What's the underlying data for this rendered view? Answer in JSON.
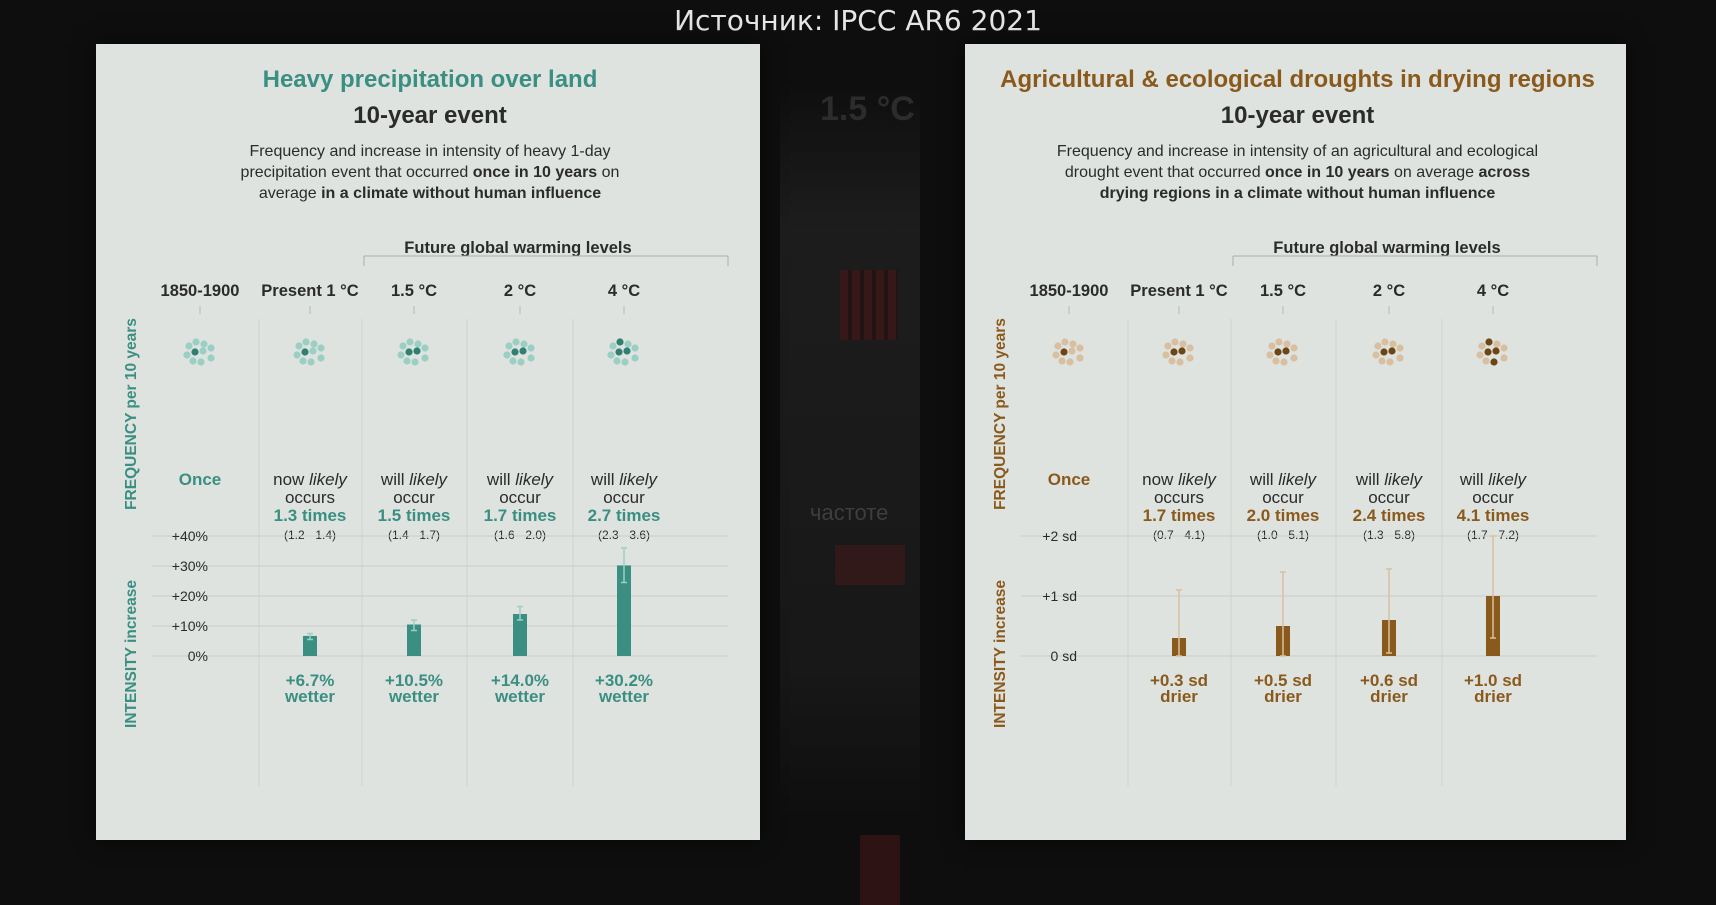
{
  "source": "Источник: IPCC AR6 2021",
  "background": {
    "title": "1.5 °C",
    "text": "частоте"
  },
  "colors": {
    "teal": "#3a8f82",
    "teal_dark": "#2f7f72",
    "teal_light": "#9ccfc4",
    "brown": "#8a5a1c",
    "brown_dark": "#6e4514",
    "brown_light": "#d8bfa0",
    "panel": "#dfe3e0",
    "text": "#2b2b2b"
  },
  "chart_data": [
    {
      "type": "bar",
      "title": "Heavy precipitation over land",
      "subtitle": "10-year event",
      "description": [
        [
          {
            "t": "Frequency and increase in intensity of heavy 1-day",
            "b": false
          }
        ],
        [
          {
            "t": "precipitation event that occurred ",
            "b": false
          },
          {
            "t": "once in 10 years",
            "b": true
          },
          {
            "t": " on",
            "b": false
          }
        ],
        [
          {
            "t": "average ",
            "b": false
          },
          {
            "t": "in a climate without human influence",
            "b": true
          }
        ]
      ],
      "future_label": "Future global warming levels",
      "categories": [
        "1850-1900",
        "Present 1 °C",
        "1.5 °C",
        "2 °C",
        "4 °C"
      ],
      "frequency_label": "FREQUENCY per 10 years",
      "intensity_label": "INTENSITY increase",
      "frequency_text": [
        {
          "l1": "Once",
          "l2": "",
          "value": "",
          "range": ""
        },
        {
          "l1": "now ",
          "em": "likely",
          "l2": "occurs",
          "value": "1.3 times",
          "range": "(1.2 - 1.4)"
        },
        {
          "l1": "will ",
          "em": "likely",
          "l2": "occur",
          "value": "1.5 times",
          "range": "(1.4 - 1.7)"
        },
        {
          "l1": "will ",
          "em": "likely",
          "l2": "occur",
          "value": "1.7 times",
          "range": "(1.6 - 2.0)"
        },
        {
          "l1": "will ",
          "em": "likely",
          "l2": "occur",
          "value": "2.7 times",
          "range": "(2.3 - 3.6)"
        }
      ],
      "frequency_values": [
        1,
        1.3,
        1.5,
        1.7,
        2.7
      ],
      "y_ticks": [
        "+40%",
        "+30%",
        "+20%",
        "+10%",
        "0%"
      ],
      "y_tick_values": [
        40,
        30,
        20,
        10,
        0
      ],
      "ylim": [
        0,
        40
      ],
      "values": [
        null,
        6.7,
        10.5,
        14.0,
        30.2
      ],
      "error_low": [
        null,
        5.5,
        8.5,
        12.0,
        24.5
      ],
      "error_high": [
        null,
        7.5,
        12.0,
        16.5,
        36.0
      ],
      "bar_labels": [
        {
          "v": "",
          "w": ""
        },
        {
          "v": "+6.7%",
          "w": "wetter"
        },
        {
          "v": "+10.5%",
          "w": "wetter"
        },
        {
          "v": "+14.0%",
          "w": "wetter"
        },
        {
          "v": "+30.2%",
          "w": "wetter"
        }
      ],
      "color": "teal"
    },
    {
      "type": "bar",
      "title": "Agricultural & ecological droughts in drying regions",
      "subtitle": "10-year event",
      "description": [
        [
          {
            "t": "Frequency and increase in intensity of an agricultural and ecological",
            "b": false
          }
        ],
        [
          {
            "t": "drought event that occurred ",
            "b": false
          },
          {
            "t": "once in 10 years",
            "b": true
          },
          {
            "t": " on average ",
            "b": false
          },
          {
            "t": "across",
            "b": true
          }
        ],
        [
          {
            "t": "drying regions in a climate without human influence",
            "b": true
          }
        ]
      ],
      "future_label": "Future global warming levels",
      "categories": [
        "1850-1900",
        "Present 1 °C",
        "1.5 °C",
        "2 °C",
        "4 °C"
      ],
      "frequency_label": "FREQUENCY per 10 years",
      "intensity_label": "INTENSITY increase",
      "frequency_text": [
        {
          "l1": "Once",
          "l2": "",
          "value": "",
          "range": ""
        },
        {
          "l1": "now ",
          "em": "likely",
          "l2": "occurs",
          "value": "1.7 times",
          "range": "(0.7 - 4.1)"
        },
        {
          "l1": "will ",
          "em": "likely",
          "l2": "occur",
          "value": "2.0 times",
          "range": "(1.0 - 5.1)"
        },
        {
          "l1": "will ",
          "em": "likely",
          "l2": "occur",
          "value": "2.4 times",
          "range": "(1.3 - 5.8)"
        },
        {
          "l1": "will ",
          "em": "likely",
          "l2": "occur",
          "value": "4.1 times",
          "range": "(1.7 - 7.2)"
        }
      ],
      "frequency_values": [
        1,
        1.7,
        2.0,
        2.4,
        4.1
      ],
      "y_ticks": [
        "+2 sd",
        "+1 sd",
        "0 sd"
      ],
      "y_tick_values": [
        2,
        1,
        0
      ],
      "ylim": [
        0,
        2
      ],
      "values": [
        null,
        0.3,
        0.5,
        0.6,
        1.0
      ],
      "error_low": [
        null,
        0.0,
        0.0,
        0.05,
        0.3
      ],
      "error_high": [
        null,
        1.1,
        1.4,
        1.45,
        2.0
      ],
      "bar_labels": [
        {
          "v": "",
          "w": ""
        },
        {
          "v": "+0.3 sd",
          "w": "drier"
        },
        {
          "v": "+0.5 sd",
          "w": "drier"
        },
        {
          "v": "+0.6 sd",
          "w": "drier"
        },
        {
          "v": "+1.0 sd",
          "w": "drier"
        }
      ],
      "color": "brown"
    }
  ]
}
